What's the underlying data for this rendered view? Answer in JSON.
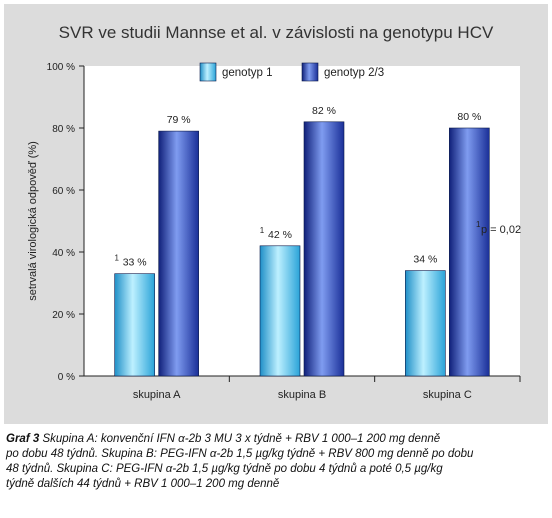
{
  "chart_data": {
    "type": "bar",
    "title": "SVR ve studii Mannse et al. v závislosti na  genotypu HCV",
    "ylabel": "setrvalá virologická odpověď (%)",
    "xlabel": "",
    "ylim": [
      0,
      100
    ],
    "yticks": [
      0,
      20,
      40,
      60,
      80,
      100
    ],
    "ytick_labels": [
      "0 %",
      "20 %",
      "40 %",
      "60 %",
      "80 %",
      "100 %"
    ],
    "categories": [
      "skupina A",
      "skupina B",
      "skupina C"
    ],
    "series": [
      {
        "name": "genotyp 1",
        "values": [
          33,
          42,
          34
        ],
        "labels": [
          "33 %",
          "42 %",
          "34 %"
        ],
        "superscripts": [
          "1",
          "1",
          ""
        ],
        "color": "#4fc3e8"
      },
      {
        "name": "genotyp 2/3",
        "values": [
          79,
          82,
          80
        ],
        "labels": [
          "79 %",
          "82 %",
          "80 %"
        ],
        "superscripts": [
          "",
          "",
          ""
        ],
        "color": "#2b4fb8"
      }
    ],
    "grid": false,
    "legend_position": "top",
    "annotation": {
      "sup": "1",
      "text": "p = 0,02"
    }
  },
  "caption": {
    "label": "Graf 3",
    "lines": [
      "Skupina A: konvenční IFN α-2b 3 MU 3 x týdně + RBV 1 000–1 200 mg denně",
      "po dobu 48 týdnů. Skupina B: PEG-IFN α-2b 1,5 µg/kg týdně + RBV 800 mg denně po dobu",
      "48 týdnů. Skupina C: PEG-IFN α-2b 1,5 µg/kg týdně po dobu 4 týdnů a poté 0,5 µg/kg",
      "týdně dalších 44 týdnů + RBV 1 000–1 200 mg denně"
    ]
  },
  "colors": {
    "frame_bg": "#dcdcdc",
    "plot_bg": "#ffffff",
    "title_color": "#333333"
  }
}
